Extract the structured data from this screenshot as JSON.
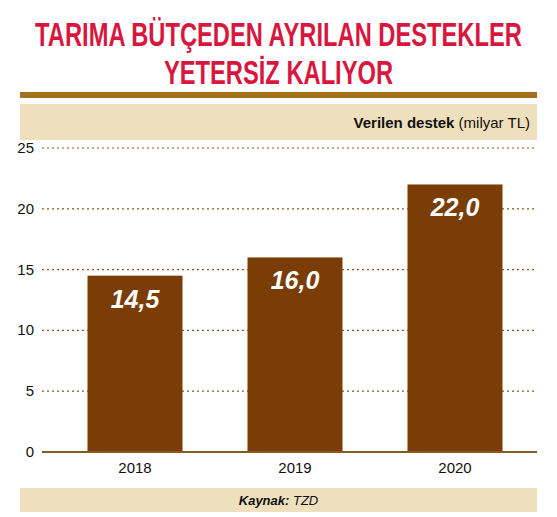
{
  "chart_data": {
    "type": "bar",
    "title": "TARIMA BÜTÇEDEN AYRILAN DESTEKLER YETERSİZ KALIYOR",
    "ylabel": "Verilen destek (milyar TL)",
    "source": "Kaynak: TZD",
    "categories": [
      "2018",
      "2019",
      "2020"
    ],
    "values": [
      14.5,
      16.0,
      22.0
    ],
    "value_labels": [
      "14,5",
      "16,0",
      "22,0"
    ],
    "color": "#7a3d06",
    "ylim": [
      0,
      25
    ],
    "yticks": [
      0,
      5,
      10,
      15,
      20,
      25
    ],
    "grid": true,
    "data_labels": true
  }
}
